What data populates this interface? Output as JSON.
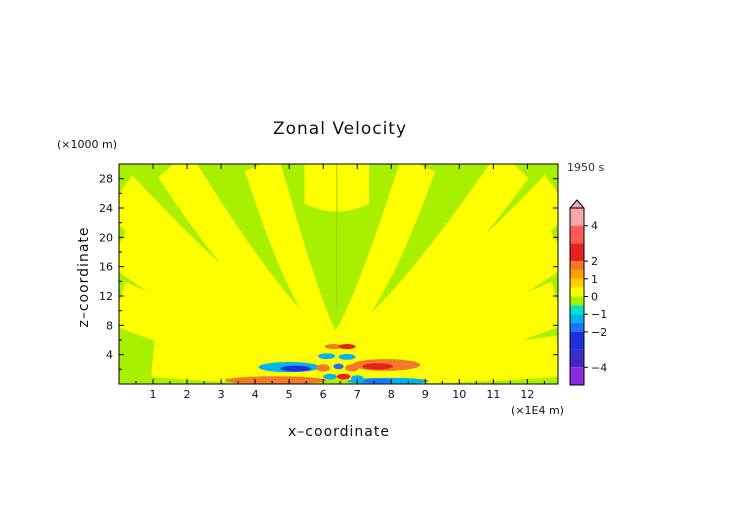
{
  "chart_data": {
    "type": "heatmap",
    "title": "Zonal Velocity",
    "time_label": "1950 s",
    "xlabel": "x–coordinate",
    "ylabel": "z–coordinate",
    "x_unit": "(×1E4 m)",
    "y_unit": "(×1000 m)",
    "xlim": [
      0,
      12.9
    ],
    "ylim": [
      0,
      30
    ],
    "x_ticks": [
      1,
      2,
      3,
      4,
      5,
      6,
      7,
      8,
      9,
      10,
      11,
      12
    ],
    "y_ticks": [
      4,
      8,
      12,
      16,
      20,
      24,
      28
    ],
    "colorbar": {
      "tick_labels": [
        "4",
        "2",
        "1",
        "0",
        "−1",
        "−2",
        "−4"
      ],
      "tick_values": [
        4,
        2,
        1,
        0,
        -1,
        -2,
        -4
      ],
      "range": [
        -5,
        5
      ],
      "extend": "max",
      "levels": [
        {
          "lo": 4,
          "hi": 5,
          "color": "#f4a8a8"
        },
        {
          "lo": 3,
          "hi": 4,
          "color": "#ff5a5a"
        },
        {
          "lo": 2,
          "hi": 3,
          "color": "#e82020"
        },
        {
          "lo": 1.5,
          "hi": 2,
          "color": "#f07a28"
        },
        {
          "lo": 1,
          "hi": 1.5,
          "color": "#ffa000"
        },
        {
          "lo": 0.5,
          "hi": 1,
          "color": "#ffd000"
        },
        {
          "lo": 0,
          "hi": 0.5,
          "color": "#ffff00"
        },
        {
          "lo": -0.5,
          "hi": 0,
          "color": "#a8f000"
        },
        {
          "lo": -1,
          "hi": -0.5,
          "color": "#00e6c0"
        },
        {
          "lo": -1.5,
          "hi": -1,
          "color": "#00b4f0"
        },
        {
          "lo": -2,
          "hi": -1.5,
          "color": "#2070ff"
        },
        {
          "lo": -3,
          "hi": -2,
          "color": "#1e2fe0"
        },
        {
          "lo": -4,
          "hi": -3,
          "color": "#3a2cc8"
        },
        {
          "lo": -5,
          "hi": -4,
          "color": "#8a2ce0"
        }
      ]
    },
    "field": {
      "background": "#a8f000",
      "positive_bands": [
        {
          "xb": 0.0,
          "xt": 0.0,
          "zb": 0,
          "zt": 30,
          "w": 0.0
        },
        {
          "xb": 6.35,
          "xt": 1.0,
          "zb": 1.5,
          "zt": 3.8,
          "w": 1.0
        },
        {
          "xb": 6.35,
          "xt": 0.0,
          "zb": 2.0,
          "zt": 11.0,
          "w": 1.1
        },
        {
          "xb": 6.35,
          "xt": 0.0,
          "zb": 3.0,
          "zt": 19.0,
          "w": 1.1
        },
        {
          "xb": 6.35,
          "xt": 0.0,
          "zb": 4.0,
          "zt": 26.0,
          "w": 1.1
        },
        {
          "xb": 6.35,
          "xt": 1.6,
          "zb": 5.0,
          "zt": 30.0,
          "w": 1.0
        },
        {
          "xb": 6.35,
          "xt": 4.2,
          "zb": 6.0,
          "zt": 30.0,
          "w": 0.9
        },
        {
          "xb": 6.35,
          "xt": 12.9,
          "zb": 1.5,
          "zt": 3.8,
          "w": 1.0
        },
        {
          "xb": 6.35,
          "xt": 12.9,
          "zb": 2.0,
          "zt": 11.0,
          "w": 1.1
        },
        {
          "xb": 6.35,
          "xt": 12.9,
          "zb": 3.0,
          "zt": 19.0,
          "w": 1.1
        },
        {
          "xb": 6.35,
          "xt": 12.9,
          "zb": 4.0,
          "zt": 26.0,
          "w": 1.1
        },
        {
          "xb": 6.35,
          "xt": 11.6,
          "zb": 5.0,
          "zt": 30.0,
          "w": 1.0
        },
        {
          "xb": 6.35,
          "xt": 8.8,
          "zb": 6.0,
          "zt": 30.0,
          "w": 0.9
        }
      ],
      "central_cap": {
        "x": 6.4,
        "z0": 23.5,
        "z1": 30,
        "w": 1.9
      },
      "blobs": [
        {
          "x": 4.6,
          "z": 0.5,
          "rx": 1.5,
          "rz": 0.55,
          "color": "#f07a28"
        },
        {
          "x": 5.0,
          "z": 2.3,
          "rx": 0.9,
          "rz": 0.7,
          "color": "#00b4f0"
        },
        {
          "x": 5.2,
          "z": 2.1,
          "rx": 0.45,
          "rz": 0.4,
          "color": "#1e2fe0"
        },
        {
          "x": 6.3,
          "z": 5.1,
          "rx": 0.25,
          "rz": 0.35,
          "color": "#f07a28"
        },
        {
          "x": 6.7,
          "z": 5.1,
          "rx": 0.25,
          "rz": 0.35,
          "color": "#e82020"
        },
        {
          "x": 6.1,
          "z": 3.8,
          "rx": 0.25,
          "rz": 0.4,
          "color": "#00b4f0"
        },
        {
          "x": 6.7,
          "z": 3.7,
          "rx": 0.25,
          "rz": 0.4,
          "color": "#00b4f0"
        },
        {
          "x": 6.0,
          "z": 2.2,
          "rx": 0.2,
          "rz": 0.5,
          "color": "#f07a28"
        },
        {
          "x": 6.45,
          "z": 2.4,
          "rx": 0.15,
          "rz": 0.4,
          "color": "#2070ff"
        },
        {
          "x": 6.85,
          "z": 2.2,
          "rx": 0.2,
          "rz": 0.5,
          "color": "#f07a28"
        },
        {
          "x": 6.2,
          "z": 1.0,
          "rx": 0.2,
          "rz": 0.4,
          "color": "#00b4f0"
        },
        {
          "x": 6.6,
          "z": 1.0,
          "rx": 0.2,
          "rz": 0.4,
          "color": "#e82020"
        },
        {
          "x": 7.0,
          "z": 0.8,
          "rx": 0.18,
          "rz": 0.4,
          "color": "#00b4f0"
        },
        {
          "x": 7.85,
          "z": 2.6,
          "rx": 1.0,
          "rz": 0.8,
          "color": "#f07a28"
        },
        {
          "x": 7.6,
          "z": 2.4,
          "rx": 0.45,
          "rz": 0.45,
          "color": "#e82020"
        },
        {
          "x": 7.9,
          "z": 0.4,
          "rx": 1.2,
          "rz": 0.45,
          "color": "#00b4f0"
        },
        {
          "x": 7.6,
          "z": 0.4,
          "rx": 0.45,
          "rz": 0.3,
          "color": "#2070ff"
        }
      ]
    }
  }
}
